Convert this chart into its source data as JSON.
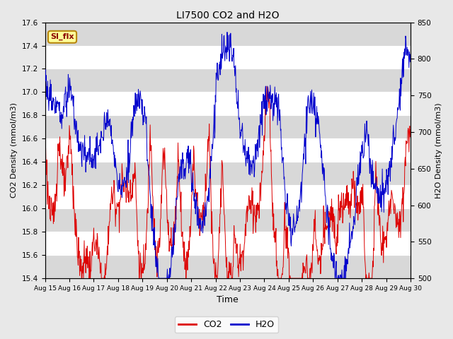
{
  "title": "LI7500 CO2 and H2O",
  "xlabel": "Time",
  "ylabel_left": "CO2 Density (mmol/m3)",
  "ylabel_right": "H2O Density (mmol/m3)",
  "ylim_left": [
    15.4,
    17.6
  ],
  "ylim_right": [
    500,
    850
  ],
  "xtick_labels": [
    "Aug 15",
    "Aug 16",
    "Aug 17",
    "Aug 18",
    "Aug 19",
    "Aug 20",
    "Aug 21",
    "Aug 22",
    "Aug 23",
    "Aug 24",
    "Aug 25",
    "Aug 26",
    "Aug 27",
    "Aug 28",
    "Aug 29",
    "Aug 30"
  ],
  "legend_label": "SI_flx",
  "legend_bg": "#ffff99",
  "legend_border": "#b8860b",
  "co2_color": "#dd0000",
  "h2o_color": "#0000cc",
  "background_color": "#e8e8e8",
  "plot_bg": "#ffffff",
  "band_color": "#d8d8d8",
  "n_points": 960,
  "yticks_left": [
    15.4,
    15.6,
    15.8,
    16.0,
    16.2,
    16.4,
    16.6,
    16.8,
    17.0,
    17.2,
    17.4,
    17.6
  ],
  "yticks_right": [
    500,
    550,
    600,
    650,
    700,
    750,
    800,
    850
  ]
}
